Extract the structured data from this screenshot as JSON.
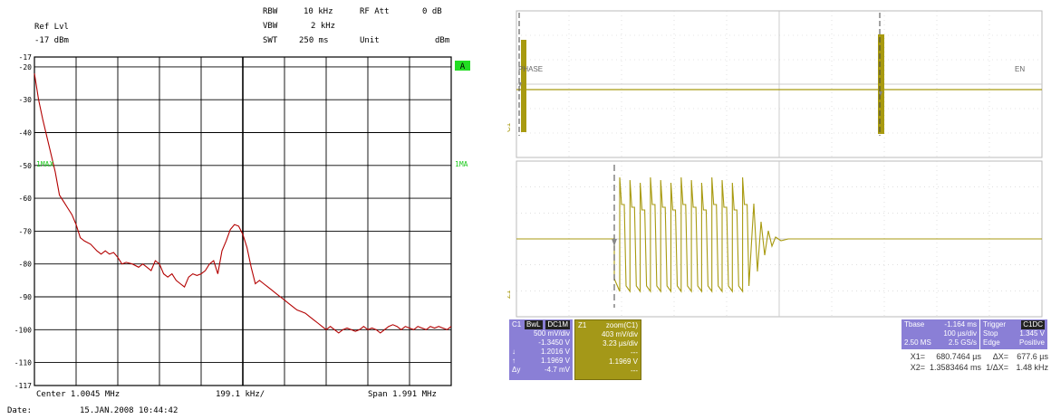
{
  "analyzer": {
    "ref_lvl_label": "Ref Lvl",
    "ref_lvl_value": "-17 dBm",
    "rbw_label": "RBW",
    "rbw_value": "10 kHz",
    "rf_att_label": "RF Att",
    "rf_att_value": "0 dB",
    "vbw_label": "VBW",
    "vbw_value": "2 kHz",
    "swt_label": "SWT",
    "swt_value": "250 ms",
    "unit_label": "Unit",
    "unit_value": "dBm",
    "a_badge": "A",
    "trace_left_label": "1MAX",
    "trace_right_label": "1MA",
    "center_label": "Center 1.0045 MHz",
    "span_per_div": "199.1 kHz/",
    "span_label": "Span 1.991 MHz",
    "date_label": "Date:",
    "date_value": "15.JAN.2008  10:44:42",
    "trace_color": "#b30000"
  },
  "chart_data": {
    "type": "line",
    "y_tick_labels": [
      "-17",
      "-20",
      "-30",
      "-40",
      "-50",
      "-60",
      "-70",
      "-80",
      "-90",
      "-100",
      "-110",
      "-117"
    ],
    "ylim": [
      -117,
      -17
    ],
    "x_divisions": 10,
    "series": [
      {
        "x_div": [
          0,
          0.1,
          0.2,
          0.35,
          0.5,
          0.6,
          0.7,
          0.8,
          0.9,
          1.0,
          1.1,
          1.2,
          1.35,
          1.5,
          1.6,
          1.7,
          1.8,
          1.9,
          2.0,
          2.1,
          2.2,
          2.35,
          2.5,
          2.6,
          2.7,
          2.8,
          2.9,
          3.0,
          3.1,
          3.2,
          3.3,
          3.4,
          3.5,
          3.6,
          3.7,
          3.8,
          3.9,
          4.0,
          4.1,
          4.2,
          4.3,
          4.4,
          4.5,
          4.6,
          4.7,
          4.8,
          4.9,
          5.0,
          5.1,
          5.2,
          5.3,
          5.4,
          5.5,
          5.6,
          5.7,
          5.8,
          5.9,
          6.0,
          6.1,
          6.2,
          6.3,
          6.4,
          6.5,
          6.6,
          6.7,
          6.8,
          6.9,
          7.0,
          7.1,
          7.2,
          7.3,
          7.4,
          7.5,
          7.6,
          7.7,
          7.8,
          7.9,
          8.0,
          8.1,
          8.2,
          8.3,
          8.4,
          8.5,
          8.6,
          8.7,
          8.8,
          8.9,
          9.0,
          9.1,
          9.2,
          9.3,
          9.4,
          9.5,
          9.6,
          9.7,
          9.8,
          9.9,
          10.0
        ],
        "y": [
          -22,
          -30,
          -36,
          -44,
          -52,
          -59,
          -61,
          -63,
          -65,
          -68,
          -72,
          -73,
          -74,
          -76,
          -77,
          -76,
          -77,
          -76.5,
          -78,
          -80,
          -79.5,
          -80,
          -81,
          -80,
          -81,
          -82,
          -79,
          -80,
          -83,
          -84,
          -83,
          -85,
          -86,
          -87,
          -84,
          -83,
          -83.5,
          -83,
          -82,
          -80,
          -79,
          -83,
          -76,
          -73,
          -69.5,
          -68,
          -68.5,
          -71,
          -75,
          -81,
          -86,
          -85,
          -86,
          -87,
          -88,
          -89,
          -90,
          -91,
          -92,
          -93,
          -94,
          -94.5,
          -95,
          -96,
          -97,
          -98,
          -99,
          -100,
          -99,
          -100,
          -101,
          -100,
          -99.5,
          -100,
          -100.5,
          -100,
          -99,
          -100,
          -99.5,
          -100,
          -101,
          -100,
          -99,
          -98.5,
          -99,
          -100,
          -99,
          -99.5,
          -100,
          -99,
          -99.5,
          -100,
          -99,
          -99.5,
          -99,
          -99.5,
          -100,
          -99
        ]
      }
    ]
  },
  "scope": {
    "phase_label": "PHASE",
    "en_label": "EN",
    "ch1_side_label": "C1",
    "z1_side_label": "Z1",
    "trace_color": "#a89a10",
    "c1_box": {
      "title": "C1",
      "badge1": "BwL",
      "badge2": "DC1M",
      "vdiv": "500 mV/div",
      "offset": "-1.3450 V",
      "lo_label": "↓",
      "lo_value": "1.2016 V",
      "hi_label": "↑",
      "hi_value": "1.1969 V",
      "dy_label": "Δy",
      "dy_value": "-4.7 mV"
    },
    "z1_box": {
      "title": "Z1",
      "name": "zoom(C1)",
      "vdiv": "403 mV/div",
      "tdiv": "3.23 µs/div",
      "val1": "---",
      "val2": "1.1969 V",
      "val3": "---"
    },
    "tbase": {
      "label": "Tbase",
      "value": "-1.164 ms",
      "tdiv": "100 µs/div",
      "samples": "2.50 MS",
      "rate": "2.5 GS/s"
    },
    "trigger": {
      "label": "Trigger",
      "badge": "C1DC",
      "mode": "Stop",
      "level": "1.345 V",
      "type": "Edge",
      "slope": "Positive"
    },
    "cursors": {
      "x1_label": "X1=",
      "x1_value": "680.7464 µs",
      "dx_label": "ΔX=",
      "dx_value": "677.6 µs",
      "x2_label": "X2=",
      "x2_value": "1.3583464 ms",
      "inv_label": "1/ΔX=",
      "inv_value": "1.48 kHz"
    }
  }
}
